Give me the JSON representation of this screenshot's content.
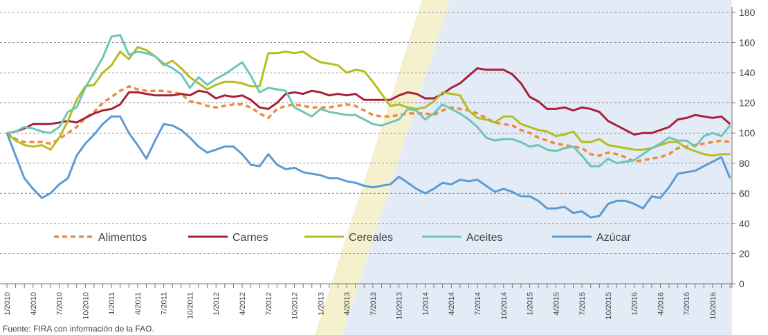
{
  "chart_data": {
    "type": "line",
    "categories": [
      "1/2010",
      null,
      null,
      "4/2010",
      null,
      null,
      "7/2010",
      null,
      null,
      "10/2010",
      null,
      null,
      "1/2011",
      null,
      null,
      "4/2011",
      null,
      null,
      "7/2011",
      null,
      null,
      "10/2011",
      null,
      null,
      "1/2012",
      null,
      null,
      "4/2012",
      null,
      null,
      "7/2012",
      null,
      null,
      "10/2012",
      null,
      null,
      "1/2013",
      null,
      null,
      "4/2013",
      null,
      null,
      "7/2013",
      null,
      null,
      "10/2013",
      null,
      null,
      "1/2014",
      null,
      null,
      "4/2014",
      null,
      null,
      "7/2014",
      null,
      null,
      "10/2014",
      null,
      null,
      "1/2015",
      null,
      null,
      "4/2015",
      null,
      null,
      "7/2015",
      null,
      null,
      "10/2015",
      null,
      null,
      "1/2016",
      null,
      null,
      "4/2016",
      null,
      null,
      "7/2016",
      null,
      null,
      "10/2016",
      null,
      null
    ],
    "series": [
      {
        "name": "Alimentos",
        "color": "#f08a3c",
        "dashed": true,
        "values": [
          100,
          96,
          94,
          94,
          94,
          93,
          96,
          100,
          104,
          110,
          114,
          120,
          124,
          128,
          131,
          129,
          128,
          128,
          128,
          127,
          126,
          121,
          120,
          118,
          117,
          118,
          119,
          119,
          117,
          113,
          110,
          116,
          118,
          119,
          118,
          117,
          117,
          117,
          118,
          119,
          118,
          115,
          112,
          111,
          111,
          112,
          113,
          113,
          113,
          112,
          115,
          117,
          116,
          115,
          113,
          110,
          107,
          106,
          105,
          102,
          100,
          97,
          95,
          93,
          92,
          91,
          90,
          86,
          85,
          87,
          86,
          84,
          81,
          82,
          83,
          84,
          86,
          90,
          91,
          92,
          93,
          94,
          95,
          94
        ]
      },
      {
        "name": "Carnes",
        "color": "#a8203a",
        "dashed": false,
        "values": [
          100,
          101,
          103,
          106,
          106,
          106,
          107,
          108,
          107,
          110,
          113,
          115,
          116,
          119,
          127,
          127,
          126,
          125,
          125,
          125,
          126,
          125,
          128,
          127,
          123,
          125,
          124,
          125,
          122,
          117,
          116,
          120,
          126,
          127,
          126,
          128,
          127,
          125,
          126,
          125,
          126,
          122,
          122,
          122,
          122,
          125,
          127,
          126,
          123,
          123,
          126,
          130,
          133,
          138,
          143,
          142,
          142,
          142,
          139,
          133,
          124,
          121,
          116,
          116,
          117,
          115,
          117,
          116,
          114,
          108,
          105,
          102,
          99,
          100,
          100,
          102,
          104,
          109,
          110,
          112,
          111,
          110,
          111,
          106
        ]
      },
      {
        "name": "Cereales",
        "color": "#b5bd1f",
        "dashed": false,
        "values": [
          100,
          95,
          92,
          91,
          92,
          89,
          97,
          108,
          122,
          131,
          132,
          140,
          145,
          154,
          149,
          157,
          155,
          151,
          145,
          148,
          143,
          137,
          133,
          129,
          132,
          134,
          134,
          133,
          131,
          131,
          153,
          153,
          154,
          153,
          154,
          150,
          147,
          146,
          145,
          140,
          142,
          141,
          134,
          126,
          118,
          119,
          117,
          116,
          117,
          121,
          127,
          126,
          125,
          115,
          110,
          109,
          107,
          111,
          111,
          106,
          104,
          102,
          101,
          98,
          99,
          101,
          94,
          94,
          96,
          92,
          91,
          90,
          89,
          89,
          90,
          92,
          94,
          94,
          90,
          88,
          86,
          85,
          86,
          86
        ]
      },
      {
        "name": "Aceites",
        "color": "#6cc5b8",
        "dashed": false,
        "values": [
          100,
          101,
          104,
          103,
          101,
          100,
          104,
          114,
          117,
          130,
          140,
          150,
          164,
          165,
          152,
          154,
          153,
          151,
          146,
          143,
          139,
          130,
          137,
          132,
          136,
          139,
          143,
          147,
          138,
          127,
          130,
          129,
          128,
          117,
          114,
          111,
          116,
          114,
          113,
          112,
          112,
          109,
          106,
          105,
          107,
          109,
          116,
          115,
          109,
          113,
          119,
          116,
          113,
          109,
          104,
          97,
          95,
          96,
          96,
          94,
          91,
          92,
          89,
          88,
          90,
          91,
          85,
          78,
          78,
          83,
          80,
          81,
          82,
          86,
          90,
          93,
          97,
          95,
          95,
          91,
          98,
          100,
          98,
          105
        ]
      },
      {
        "name": "Azúcar",
        "color": "#5b9bd5",
        "dashed": false,
        "values": [
          100,
          85,
          70,
          63,
          57,
          60,
          66,
          70,
          85,
          93,
          99,
          106,
          111,
          111,
          100,
          92,
          83,
          95,
          106,
          105,
          102,
          97,
          91,
          87,
          89,
          91,
          91,
          86,
          79,
          78,
          86,
          79,
          76,
          77,
          74,
          73,
          72,
          70,
          70,
          68,
          67,
          65,
          64,
          65,
          66,
          71,
          67,
          63,
          60,
          63,
          67,
          66,
          69,
          68,
          69,
          65,
          61,
          63,
          61,
          58,
          58,
          55,
          50,
          50,
          51,
          47,
          48,
          44,
          45,
          53,
          55,
          55,
          53,
          50,
          58,
          57,
          64,
          73,
          74,
          75,
          78,
          81,
          84,
          70
        ]
      }
    ],
    "ylim": [
      0,
      180
    ],
    "yticks": [
      0,
      20,
      40,
      60,
      80,
      100,
      120,
      140,
      160,
      180
    ],
    "grid": true,
    "source": "Fuente: FIRA con información de la FAO."
  }
}
